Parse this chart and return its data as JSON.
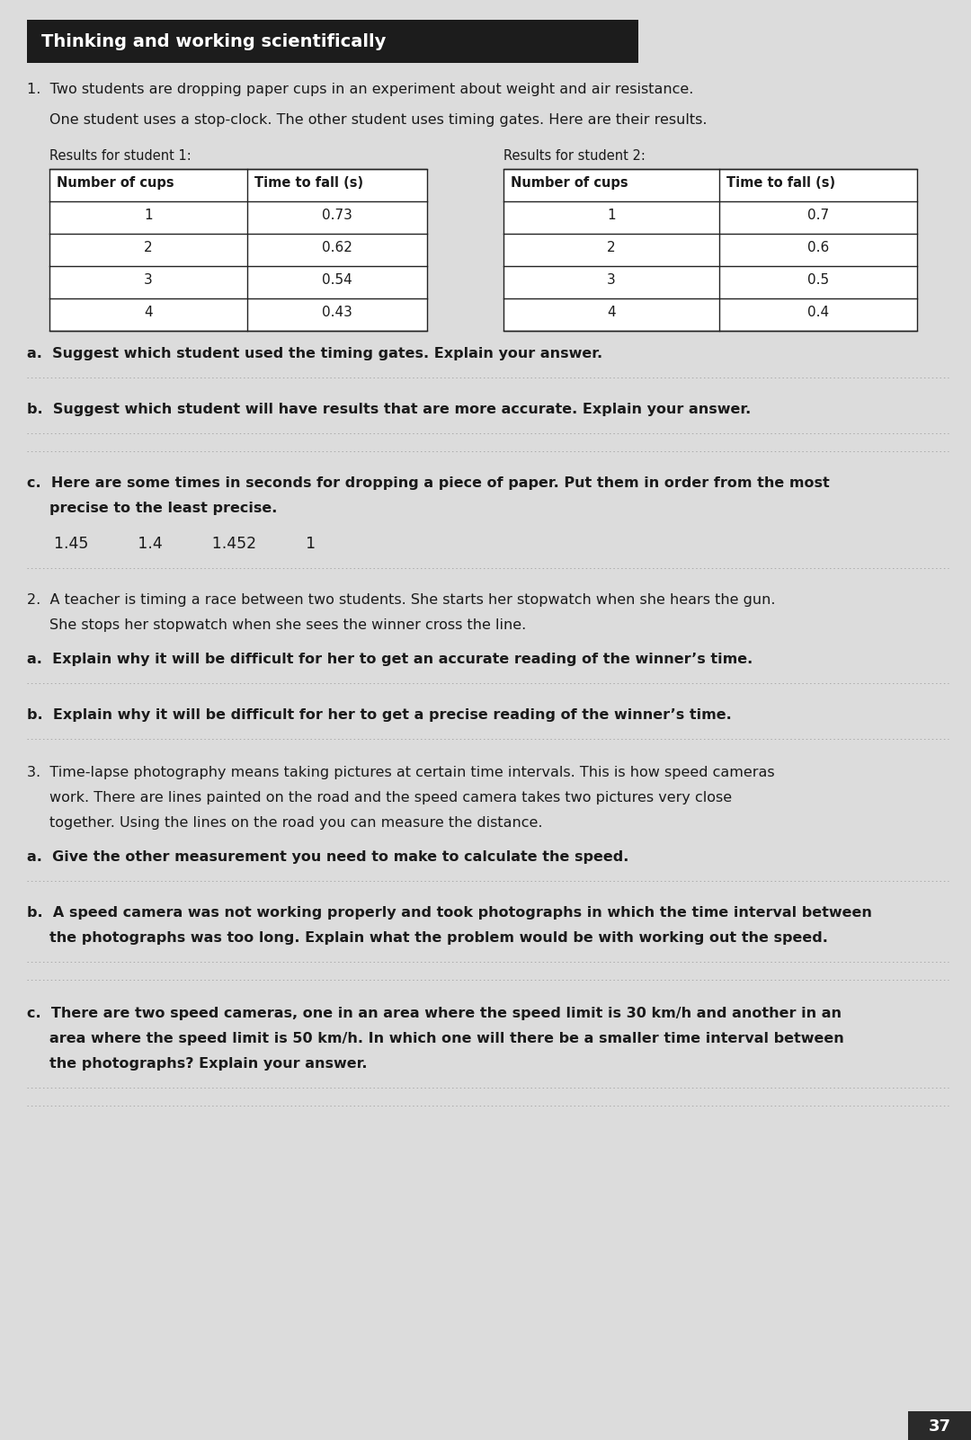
{
  "bg_color": "#c8c8c8",
  "page_bg": "#dcdcdc",
  "title_text": "Thinking and working scientifically",
  "title_bg": "#1c1c1c",
  "title_fg": "#ffffff",
  "table1_headers": [
    "Number of cups",
    "Time to fall (s)"
  ],
  "table1_data": [
    [
      "1",
      "0.73"
    ],
    [
      "2",
      "0.62"
    ],
    [
      "3",
      "0.54"
    ],
    [
      "4",
      "0.43"
    ]
  ],
  "table2_headers": [
    "Number of cups",
    "Time to fall (s)"
  ],
  "table2_data": [
    [
      "1",
      "0.7"
    ],
    [
      "2",
      "0.6"
    ],
    [
      "3",
      "0.5"
    ],
    [
      "4",
      "0.4"
    ]
  ],
  "page_num": "37",
  "text_color": "#1a1a1a",
  "table_border_color": "#222222",
  "dot_color": "#aaaaaa",
  "fs_title": 14,
  "fs_body": 11.5,
  "fs_small": 10.5,
  "fs_table_hdr": 10.5,
  "fs_table_data": 11,
  "fs_pagenum": 13
}
